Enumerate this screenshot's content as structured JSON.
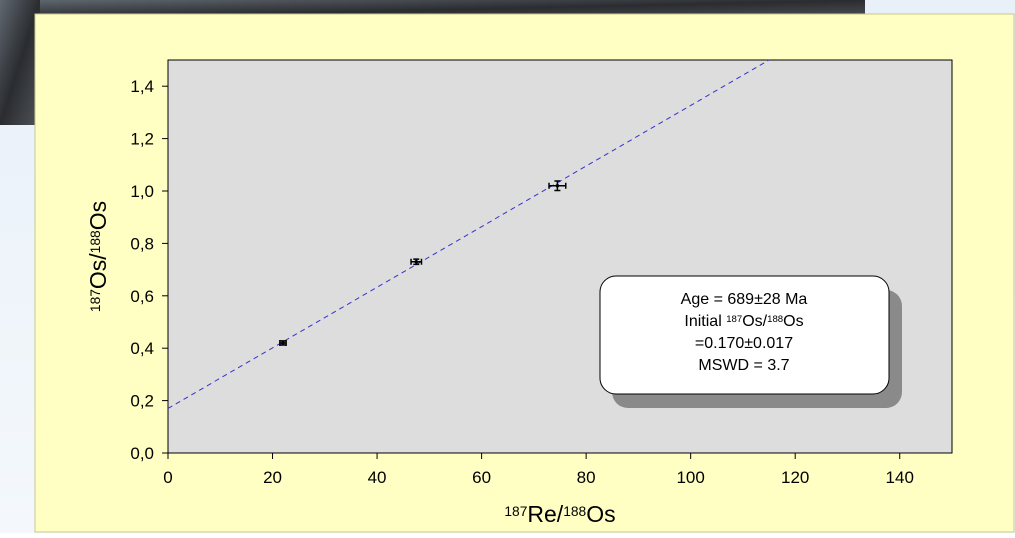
{
  "chart_data": {
    "type": "scatter",
    "xlabel": [
      {
        "text": "187",
        "sup": true
      },
      {
        "text": "Re/"
      },
      {
        "text": "188",
        "sup": true
      },
      {
        "text": "Os"
      }
    ],
    "ylabel": [
      {
        "text": "187",
        "sup": true
      },
      {
        "text": "Os/"
      },
      {
        "text": "188",
        "sup": true
      },
      {
        "text": "Os"
      }
    ],
    "xlim": [
      0,
      150
    ],
    "ylim": [
      0,
      1.5
    ],
    "xticks": [
      0,
      20,
      40,
      60,
      80,
      100,
      120,
      140
    ],
    "yticks": [
      {
        "value": 0,
        "label": "0,0"
      },
      {
        "value": 0.2,
        "label": "0,2"
      },
      {
        "value": 0.4,
        "label": "0,4"
      },
      {
        "value": 0.6,
        "label": "0,6"
      },
      {
        "value": 0.8,
        "label": "0,8"
      },
      {
        "value": 1.0,
        "label": "1,0"
      },
      {
        "value": 1.2,
        "label": "1,2"
      },
      {
        "value": 1.4,
        "label": "1,4"
      }
    ],
    "series": [
      {
        "color": "#000000",
        "x": [
          22,
          47.5,
          74.5
        ],
        "values": [
          0.42,
          0.73,
          1.02
        ],
        "x_err": [
          0.6,
          1.0,
          1.6
        ],
        "y_err": [
          0.008,
          0.01,
          0.018
        ]
      }
    ],
    "fit_line": {
      "color": "#3333cc",
      "x": [
        0,
        115
      ],
      "values": [
        0.17,
        1.5
      ]
    },
    "annotation": {
      "lines": [
        [
          {
            "text": "Age = 689±28 Ma"
          }
        ],
        [
          {
            "text": "Initial "
          },
          {
            "text": "187",
            "sup": true
          },
          {
            "text": "Os/"
          },
          {
            "text": "188",
            "sup": true
          },
          {
            "text": "Os"
          }
        ],
        [
          {
            "text": "=0.170±0.017"
          }
        ],
        [
          {
            "text": "MSWD = 3.7"
          }
        ]
      ]
    }
  }
}
